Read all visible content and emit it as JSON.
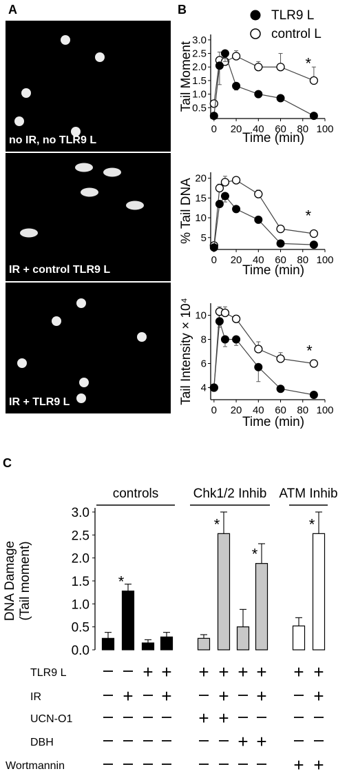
{
  "panels": {
    "A": {
      "letter": "A",
      "images": [
        {
          "label": "no IR, no TLR9 L",
          "spots": [
            [
              95,
              58
            ],
            [
              145,
              83
            ],
            [
              38,
              135
            ],
            [
              28,
              176
            ],
            [
              110,
              191
            ]
          ],
          "spot_size": "small"
        },
        {
          "label": "IR + control TLR9 L",
          "spots": [
            [
              122,
              243
            ],
            [
              163,
              250
            ],
            [
              130,
              279
            ],
            [
              196,
              298
            ],
            [
              42,
              338
            ]
          ],
          "spot_size": "comet"
        },
        {
          "label": "IR + TLR9 L",
          "spots": [
            [
              118,
              440
            ],
            [
              82,
              466
            ],
            [
              206,
              489
            ],
            [
              32,
              527
            ],
            [
              122,
              555
            ],
            [
              118,
              578
            ]
          ],
          "spot_size": "small"
        }
      ]
    },
    "B": {
      "letter": "B"
    },
    "C": {
      "letter": "C"
    }
  },
  "legend": [
    {
      "label": "TLR9 L",
      "marker": "filled"
    },
    {
      "label": "control L",
      "marker": "open"
    }
  ],
  "chart_data": [
    {
      "type": "line",
      "ylabel": "Tail Moment",
      "xlabel": "Time (min)",
      "xlim": [
        -3,
        100
      ],
      "ylim": [
        0.1,
        3.2
      ],
      "xticks": [
        0,
        20,
        40,
        60,
        80,
        100
      ],
      "yticks": [
        0.5,
        1.0,
        1.5,
        2.0,
        2.5,
        3.0
      ],
      "ytick_labels": [
        "0.5",
        "1.0",
        "1.5",
        "2.0",
        "2.5",
        "3.0"
      ],
      "series": [
        {
          "name": "TLR9 L",
          "marker": "filled",
          "x": [
            0,
            5,
            10,
            20,
            40,
            60,
            90
          ],
          "y": [
            0.2,
            2.05,
            2.5,
            1.3,
            1.0,
            0.85,
            0.2
          ],
          "err": [
            0,
            0.7,
            0.3,
            0.15,
            0.12,
            0.12,
            0
          ]
        },
        {
          "name": "control L",
          "marker": "open",
          "x": [
            0,
            5,
            10,
            20,
            40,
            60,
            90
          ],
          "y": [
            0.65,
            2.25,
            2.2,
            2.4,
            2.0,
            2.0,
            1.5
          ],
          "err": [
            0,
            0.3,
            0.3,
            0.2,
            0.2,
            0.5,
            0.5
          ]
        }
      ],
      "annotations": [
        {
          "text": "*",
          "x": 85,
          "y": 2.2
        }
      ]
    },
    {
      "type": "line",
      "ylabel": "% Tail DNA",
      "xlabel": "Time (min)",
      "xlim": [
        -3,
        100
      ],
      "ylim": [
        2,
        21.5
      ],
      "xticks": [
        0,
        20,
        40,
        60,
        80,
        100
      ],
      "yticks": [
        5,
        10,
        15,
        20
      ],
      "ytick_labels": [
        "5",
        "10",
        "15",
        "20"
      ],
      "series": [
        {
          "name": "TLR9 L",
          "marker": "filled",
          "x": [
            0,
            5,
            10,
            20,
            40,
            60,
            90
          ],
          "y": [
            2.5,
            13.5,
            15.5,
            12.2,
            9.5,
            3.5,
            3.2
          ],
          "err": [
            0,
            0.8,
            1.5,
            0.8,
            0.5,
            0.3,
            0.2
          ]
        },
        {
          "name": "control L",
          "marker": "open",
          "x": [
            0,
            5,
            10,
            20,
            40,
            60,
            90
          ],
          "y": [
            3,
            17.5,
            19,
            19.5,
            16,
            7.2,
            6
          ],
          "err": [
            0,
            1.0,
            1.5,
            0.8,
            1.0,
            0.4,
            0.3
          ]
        }
      ],
      "annotations": [
        {
          "text": "*",
          "x": 85,
          "y": 11
        }
      ]
    },
    {
      "type": "line",
      "ylabel": "Tail Intensity × 10⁴",
      "xlabel": "Time (min)",
      "xlim": [
        -3,
        100
      ],
      "ylim": [
        3,
        11
      ],
      "xticks": [
        0,
        20,
        40,
        60,
        80,
        100
      ],
      "yticks": [
        4,
        6,
        8,
        10
      ],
      "ytick_labels": [
        "4",
        "6",
        "8",
        "10"
      ],
      "series": [
        {
          "name": "TLR9 L",
          "marker": "filled",
          "x": [
            0,
            5,
            10,
            20,
            40,
            60,
            90
          ],
          "y": [
            4,
            9.5,
            8,
            8,
            5.7,
            3.9,
            3.4
          ],
          "err": [
            0,
            0.5,
            0.6,
            0.5,
            1.2,
            0.2,
            0.2
          ]
        },
        {
          "name": "control L",
          "marker": "open",
          "x": [
            0,
            5,
            10,
            20,
            40,
            60,
            90
          ],
          "y": [
            4,
            10.3,
            10.2,
            9.7,
            7.2,
            6.4,
            6
          ],
          "err": [
            0,
            0.4,
            0.5,
            0.3,
            0.6,
            0.5,
            0.3
          ]
        }
      ],
      "annotations": [
        {
          "text": "*",
          "x": 86,
          "y": 7.2
        }
      ]
    },
    {
      "type": "bar",
      "ylabel_lines": [
        "DNA Damage",
        "(Tail moment)"
      ],
      "ylim": [
        0,
        3.0
      ],
      "yticks": [
        0,
        0.5,
        1.0,
        1.5,
        2.0,
        2.5,
        3.0
      ],
      "ytick_labels": [
        "0.0",
        "0.5",
        "1.0",
        "1.5",
        "2.0",
        "2.5",
        "3.0"
      ],
      "groups": [
        {
          "label": "controls",
          "bars": [
            {
              "value": 0.25,
              "err": 0.13,
              "fill": "#000000"
            },
            {
              "value": 1.28,
              "err": 0.15,
              "fill": "#000000",
              "star": true
            },
            {
              "value": 0.15,
              "err": 0.07,
              "fill": "#000000"
            },
            {
              "value": 0.28,
              "err": 0.1,
              "fill": "#000000"
            }
          ]
        },
        {
          "label": "Chk1/2 Inhib",
          "bars": [
            {
              "value": 0.25,
              "err": 0.08,
              "fill": "#c8c8c8"
            },
            {
              "value": 2.53,
              "err": 0.47,
              "fill": "#c8c8c8",
              "star": true
            },
            {
              "value": 0.5,
              "err": 0.38,
              "fill": "#c8c8c8"
            },
            {
              "value": 1.88,
              "err": 0.43,
              "fill": "#c8c8c8",
              "star": true
            }
          ]
        },
        {
          "label": "ATM Inhib",
          "bars": [
            {
              "value": 0.52,
              "err": 0.18,
              "fill": "#ffffff"
            },
            {
              "value": 2.53,
              "err": 0.47,
              "fill": "#ffffff",
              "star": true
            }
          ]
        }
      ],
      "treatments": [
        {
          "label": "TLR9 L",
          "signs": [
            "–",
            "–",
            "+",
            "+",
            "+",
            "+",
            "+",
            "+",
            "+",
            "+"
          ]
        },
        {
          "label": "IR",
          "signs": [
            "–",
            "+",
            "–",
            "+",
            "–",
            "+",
            "–",
            "+",
            "–",
            "+"
          ]
        },
        {
          "label": "UCN-O1",
          "signs": [
            "–",
            "–",
            "–",
            "–",
            "+",
            "+",
            "–",
            "–",
            "–",
            "–"
          ]
        },
        {
          "label": "DBH",
          "signs": [
            "–",
            "–",
            "–",
            "–",
            "–",
            "–",
            "+",
            "+",
            "–",
            "–"
          ]
        },
        {
          "label": "Wortmannin",
          "signs": [
            "–",
            "–",
            "–",
            "–",
            "–",
            "–",
            "–",
            "–",
            "+",
            "+"
          ]
        }
      ]
    }
  ],
  "colors": {
    "axis": "#000000",
    "line": "#444444",
    "gray_bar": "#c8c8c8"
  }
}
